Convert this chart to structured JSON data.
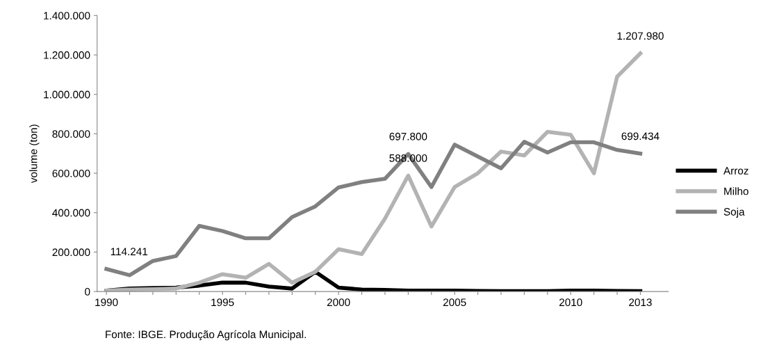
{
  "chart_data": {
    "type": "line",
    "ylabel": "volume (ton)",
    "x": [
      1990,
      1991,
      1992,
      1993,
      1994,
      1995,
      1996,
      1997,
      1998,
      1999,
      2000,
      2001,
      2002,
      2003,
      2004,
      2005,
      2006,
      2007,
      2008,
      2009,
      2010,
      2011,
      2012,
      2013
    ],
    "series": [
      {
        "name": "Arroz",
        "color": "#000000",
        "values": [
          5000,
          15000,
          18000,
          20000,
          30000,
          45000,
          45000,
          25000,
          15000,
          100000,
          20000,
          10000,
          8000,
          5000,
          5000,
          5000,
          3000,
          2000,
          2000,
          2000,
          5000,
          5000,
          3000,
          2000
        ]
      },
      {
        "name": "Milho",
        "color": "#b3b3b3",
        "values": [
          5000,
          10000,
          12000,
          15000,
          45000,
          88000,
          70000,
          140000,
          45000,
          100000,
          215000,
          190000,
          370000,
          588000,
          330000,
          530000,
          600000,
          710000,
          690000,
          810000,
          795000,
          600000,
          1090000,
          1207980
        ],
        "value_labels": [
          null,
          null,
          null,
          null,
          null,
          null,
          null,
          null,
          null,
          null,
          null,
          null,
          null,
          "588.000",
          null,
          null,
          null,
          null,
          null,
          null,
          null,
          null,
          null,
          "1.207.980"
        ]
      },
      {
        "name": "Soja",
        "color": "#808080",
        "values": [
          114241,
          83000,
          155000,
          180000,
          333000,
          307000,
          270000,
          270000,
          378000,
          432000,
          528000,
          555000,
          572000,
          697800,
          530000,
          745000,
          685000,
          625000,
          760000,
          705000,
          757000,
          757000,
          718000,
          699434
        ],
        "value_labels": [
          "114.241",
          null,
          null,
          null,
          null,
          null,
          null,
          null,
          null,
          null,
          null,
          null,
          null,
          "697.800",
          null,
          null,
          null,
          null,
          null,
          null,
          null,
          null,
          null,
          "699.434"
        ]
      }
    ],
    "xlim": [
      1989.6,
      2014.2
    ],
    "xticks": [
      1990,
      {
        "value": 1991,
        "label": null
      },
      {
        "value": 1992,
        "label": null
      },
      {
        "value": 1993,
        "label": null
      },
      {
        "value": 1994,
        "label": null
      },
      1995,
      {
        "value": 1996,
        "label": null
      },
      {
        "value": 1997,
        "label": null
      },
      {
        "value": 1998,
        "label": null
      },
      {
        "value": 1999,
        "label": null
      },
      2000,
      {
        "value": 2001,
        "label": null
      },
      {
        "value": 2002,
        "label": null
      },
      {
        "value": 2003,
        "label": null
      },
      {
        "value": 2004,
        "label": null
      },
      2005,
      {
        "value": 2006,
        "label": null
      },
      {
        "value": 2007,
        "label": null
      },
      {
        "value": 2008,
        "label": null
      },
      {
        "value": 2009,
        "label": null
      },
      2010,
      {
        "value": 2011,
        "label": null
      },
      {
        "value": 2012,
        "label": null
      },
      2013
    ],
    "ylim": [
      0,
      1400000
    ],
    "yticks": [
      0,
      {
        "value": 200000,
        "label": "200.000"
      },
      {
        "value": 400000,
        "label": "400.000"
      },
      {
        "value": 600000,
        "label": "600.000"
      },
      {
        "value": 800000,
        "label": "800.000"
      },
      {
        "value": 1000000,
        "label": "1.000.000"
      },
      {
        "value": 1200000,
        "label": "1.200.000"
      },
      {
        "value": 1400000,
        "label": "1.400.000"
      }
    ],
    "grid": false,
    "legend": "right",
    "marker": "none",
    "line_style": "solid",
    "annotations": [
      "Fonte: IBGE. Produção Agrícola Municipal."
    ]
  }
}
